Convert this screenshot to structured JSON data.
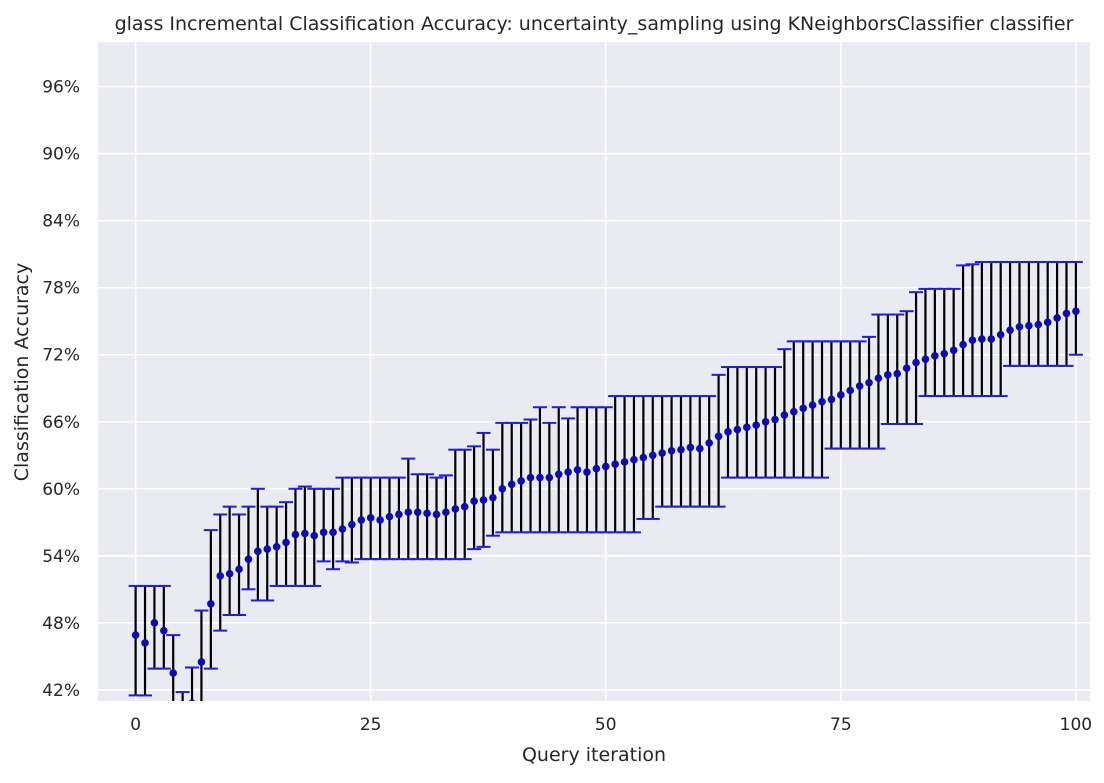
{
  "chart_data": {
    "type": "scatter",
    "title": "glass Incremental Classification Accuracy: uncertainty_sampling using KNeighborsClassifier classifier",
    "xlabel": "Query iteration",
    "ylabel": "Classification Accuracy",
    "xlim": [
      -4,
      101.5
    ],
    "ylim": [
      0.41,
      1.0
    ],
    "x_ticks": [
      0,
      25,
      50,
      75,
      100
    ],
    "x_tick_labels": [
      "0",
      "25",
      "50",
      "75",
      "100"
    ],
    "y_ticks": [
      0.42,
      0.48,
      0.54,
      0.6,
      0.66,
      0.72,
      0.78,
      0.84,
      0.9,
      0.96
    ],
    "y_tick_labels": [
      "42%",
      "48%",
      "54%",
      "60%",
      "66%",
      "72%",
      "78%",
      "84%",
      "90%",
      "96%"
    ],
    "grid": true,
    "colors": {
      "plot_background": "#eaeaf2",
      "grid": "#ffffff",
      "marker": "#0b0bb0",
      "error_bar": "#000000",
      "cap": "#1f1fd6"
    },
    "series": [
      {
        "x": [
          0,
          1,
          2,
          3,
          4,
          5,
          6,
          7,
          8,
          9,
          10,
          11,
          12,
          13,
          14,
          15,
          16,
          17,
          18,
          19,
          20,
          21,
          22,
          23,
          24,
          25,
          26,
          27,
          28,
          29,
          30,
          31,
          32,
          33,
          34,
          35,
          36,
          37,
          38,
          39,
          40,
          41,
          42,
          43,
          44,
          45,
          46,
          47,
          48,
          49,
          50,
          51,
          52,
          53,
          54,
          55,
          56,
          57,
          58,
          59,
          60,
          61,
          62,
          63,
          64,
          65,
          66,
          67,
          68,
          69,
          70,
          71,
          72,
          73,
          74,
          75,
          76,
          77,
          78,
          79,
          80,
          81,
          82,
          83,
          84,
          85,
          86,
          87,
          88,
          89,
          90,
          91,
          92,
          93,
          94,
          95,
          96,
          97,
          98,
          99,
          100
        ],
        "y": [
          0.469,
          0.462,
          0.48,
          0.473,
          0.435,
          0.4,
          0.408,
          0.445,
          0.497,
          0.522,
          0.524,
          0.528,
          0.537,
          0.544,
          0.546,
          0.548,
          0.552,
          0.559,
          0.56,
          0.558,
          0.561,
          0.561,
          0.564,
          0.568,
          0.572,
          0.574,
          0.572,
          0.575,
          0.577,
          0.579,
          0.579,
          0.578,
          0.577,
          0.579,
          0.582,
          0.584,
          0.589,
          0.59,
          0.592,
          0.6,
          0.604,
          0.607,
          0.61,
          0.61,
          0.61,
          0.613,
          0.615,
          0.617,
          0.615,
          0.618,
          0.62,
          0.622,
          0.624,
          0.626,
          0.628,
          0.63,
          0.632,
          0.634,
          0.635,
          0.637,
          0.636,
          0.641,
          0.647,
          0.651,
          0.653,
          0.655,
          0.657,
          0.66,
          0.662,
          0.666,
          0.669,
          0.672,
          0.675,
          0.678,
          0.68,
          0.684,
          0.688,
          0.692,
          0.695,
          0.699,
          0.702,
          0.703,
          0.708,
          0.713,
          0.716,
          0.719,
          0.721,
          0.724,
          0.729,
          0.733,
          0.734,
          0.734,
          0.738,
          0.742,
          0.745,
          0.746,
          0.747,
          0.749,
          0.753,
          0.757,
          0.759
        ],
        "err_low": [
          0.415,
          0.415,
          0.439,
          0.439,
          0.38,
          0.38,
          0.38,
          0.38,
          0.439,
          0.473,
          0.487,
          0.487,
          0.51,
          0.5,
          0.5,
          0.513,
          0.513,
          0.513,
          0.513,
          0.513,
          0.535,
          0.528,
          0.535,
          0.534,
          0.537,
          0.537,
          0.537,
          0.537,
          0.537,
          0.537,
          0.537,
          0.537,
          0.537,
          0.537,
          0.537,
          0.537,
          0.546,
          0.548,
          0.558,
          0.561,
          0.561,
          0.561,
          0.561,
          0.561,
          0.561,
          0.561,
          0.561,
          0.561,
          0.561,
          0.561,
          0.561,
          0.561,
          0.561,
          0.561,
          0.573,
          0.573,
          0.584,
          0.584,
          0.584,
          0.584,
          0.584,
          0.584,
          0.584,
          0.61,
          0.61,
          0.61,
          0.61,
          0.61,
          0.61,
          0.61,
          0.61,
          0.61,
          0.61,
          0.61,
          0.636,
          0.636,
          0.636,
          0.636,
          0.636,
          0.636,
          0.658,
          0.658,
          0.658,
          0.658,
          0.683,
          0.683,
          0.683,
          0.683,
          0.683,
          0.683,
          0.683,
          0.683,
          0.683,
          0.71,
          0.71,
          0.71,
          0.71,
          0.71,
          0.71,
          0.71,
          0.72
        ],
        "err_high": [
          0.513,
          0.513,
          0.513,
          0.513,
          0.469,
          0.418,
          0.44,
          0.491,
          0.563,
          0.577,
          0.584,
          0.577,
          0.584,
          0.6,
          0.584,
          0.584,
          0.588,
          0.6,
          0.602,
          0.6,
          0.6,
          0.6,
          0.61,
          0.61,
          0.61,
          0.61,
          0.61,
          0.61,
          0.61,
          0.627,
          0.613,
          0.613,
          0.61,
          0.612,
          0.635,
          0.635,
          0.638,
          0.65,
          0.635,
          0.659,
          0.659,
          0.659,
          0.662,
          0.673,
          0.659,
          0.673,
          0.663,
          0.673,
          0.673,
          0.673,
          0.673,
          0.683,
          0.683,
          0.683,
          0.683,
          0.683,
          0.683,
          0.683,
          0.683,
          0.683,
          0.683,
          0.683,
          0.702,
          0.709,
          0.709,
          0.709,
          0.709,
          0.709,
          0.709,
          0.725,
          0.732,
          0.732,
          0.732,
          0.732,
          0.732,
          0.732,
          0.732,
          0.732,
          0.736,
          0.756,
          0.756,
          0.756,
          0.759,
          0.776,
          0.779,
          0.779,
          0.779,
          0.779,
          0.8,
          0.801,
          0.803,
          0.803,
          0.803,
          0.803,
          0.803,
          0.803,
          0.803,
          0.803,
          0.803,
          0.803,
          0.803
        ]
      }
    ]
  }
}
